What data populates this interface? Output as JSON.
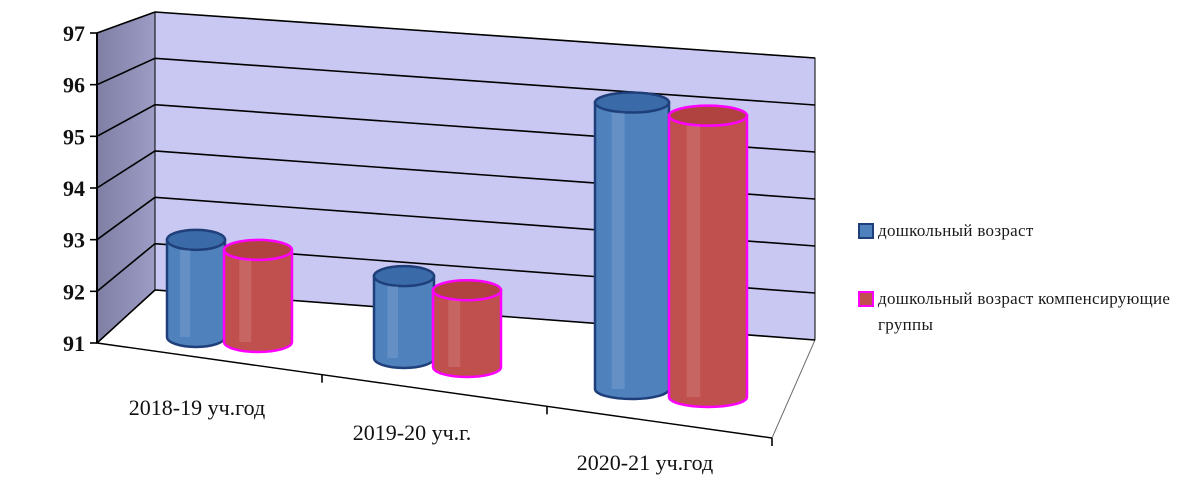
{
  "chart_data": {
    "type": "bar",
    "title": "",
    "xlabel": "",
    "ylabel": "",
    "categories": [
      "2018-19 уч.год",
      "2019-20 уч.г.",
      "2020-21 уч.год"
    ],
    "series": [
      {
        "name": "дошкольный возраст",
        "values": [
          92.9,
          92.6,
          96.6
        ],
        "color": "#4f81bd",
        "edge": "#1f3f7a"
      },
      {
        "name": "дошкольный возраст компенсирующие группы",
        "values": [
          92.8,
          92.5,
          96.5
        ],
        "color": "#c0504d",
        "edge": "#ff00ff"
      }
    ],
    "ylim": [
      91,
      97
    ],
    "yticks": [
      "97",
      "96",
      "95",
      "94",
      "93",
      "92",
      "91"
    ],
    "grid": true,
    "legend_position": "right",
    "style": "3d-cylinder"
  }
}
